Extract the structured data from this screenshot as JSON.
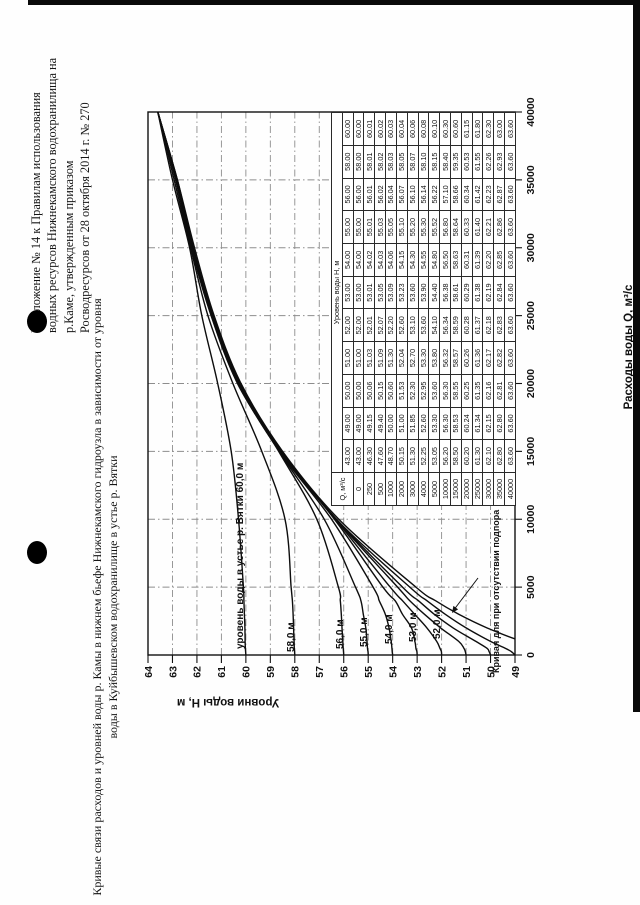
{
  "document": {
    "appendix_lines": [
      "Приложение № 14 к Правилам использования",
      "водных ресурсов Нижнекамского водохранилища на",
      "р.Каме, утвержденным приказом",
      "Росводресурсов от 28 октября 2014 г. № 270"
    ],
    "title_lines": [
      "Кривые связи расходов и уровней воды р. Камы в нижнем бьефе Нижнекамского гидроузла в зависимости от уровня",
      "воды в Куйбышевском водохранилище в устье р. Вятки"
    ]
  },
  "chart_data": {
    "type": "line",
    "title": "Кривые связи расходов и уровней воды р. Камы в нижнем бьефе Нижнекамского гидроузла",
    "xlabel": "Расходы воды Q, м³/с",
    "ylabel": "Уровни воды H, м",
    "xlim": [
      0,
      40000
    ],
    "ylim": [
      49,
      64
    ],
    "x_ticks": [
      0,
      5000,
      10000,
      15000,
      20000,
      25000,
      30000,
      35000,
      40000
    ],
    "y_ticks": [
      49,
      50,
      51,
      52,
      53,
      54,
      55,
      56,
      57,
      58,
      59,
      60,
      61,
      62,
      63,
      64
    ],
    "grid": "dash-dot",
    "legend_position": "none",
    "line_color": "#0d0d0d",
    "x": [
      0,
      250,
      500,
      1000,
      2000,
      3000,
      4000,
      5000,
      10000,
      15000,
      20000,
      25000,
      30000,
      35000,
      40000
    ],
    "series": [
      {
        "name": "43.00",
        "label": "Кривая для при отсутствии подпора",
        "values": [
          43.0,
          46.3,
          47.6,
          48.7,
          50.15,
          51.3,
          52.25,
          53.05,
          56.2,
          58.5,
          60.2,
          61.3,
          62.1,
          62.8,
          63.6
        ]
      },
      {
        "name": "49.00",
        "label": "",
        "values": [
          49.0,
          49.15,
          49.4,
          50.0,
          51.0,
          51.85,
          52.6,
          53.3,
          56.3,
          58.53,
          60.24,
          61.34,
          62.15,
          62.8,
          63.6
        ]
      },
      {
        "name": "50.00",
        "label": "",
        "values": [
          50.0,
          50.06,
          50.15,
          50.6,
          51.53,
          52.3,
          52.95,
          53.6,
          56.3,
          58.55,
          60.25,
          61.35,
          62.16,
          62.81,
          63.6
        ]
      },
      {
        "name": "51.00",
        "label": "",
        "values": [
          51.0,
          51.03,
          51.09,
          51.3,
          52.04,
          52.7,
          53.3,
          53.8,
          56.32,
          58.57,
          60.26,
          61.36,
          62.17,
          62.82,
          63.6
        ]
      },
      {
        "name": "52.00",
        "label": "52,0 м",
        "values": [
          52.0,
          52.01,
          52.07,
          52.2,
          52.6,
          53.1,
          53.6,
          54.1,
          56.34,
          58.59,
          60.28,
          61.37,
          62.18,
          62.83,
          63.6
        ]
      },
      {
        "name": "53.00",
        "label": "53,0 м",
        "values": [
          53.0,
          53.01,
          53.05,
          53.09,
          53.23,
          53.6,
          53.9,
          54.4,
          56.38,
          58.61,
          60.29,
          61.38,
          62.19,
          62.84,
          63.6
        ]
      },
      {
        "name": "54.00",
        "label": "54,0 м",
        "values": [
          54.0,
          54.02,
          54.03,
          54.06,
          54.15,
          54.3,
          54.55,
          54.8,
          56.5,
          58.63,
          60.31,
          61.39,
          62.2,
          62.85,
          63.6
        ]
      },
      {
        "name": "55.00",
        "label": "55,0 м",
        "values": [
          55.0,
          55.01,
          55.03,
          55.05,
          55.1,
          55.2,
          55.3,
          55.52,
          56.8,
          58.64,
          60.33,
          61.4,
          62.21,
          62.86,
          63.6
        ]
      },
      {
        "name": "56.00",
        "label": "56,0 м",
        "values": [
          56.0,
          56.01,
          56.02,
          56.04,
          56.07,
          56.1,
          56.14,
          56.22,
          57.1,
          58.66,
          60.34,
          61.42,
          62.23,
          62.87,
          63.6
        ]
      },
      {
        "name": "58.00",
        "label": "58,0 м",
        "values": [
          58.0,
          58.01,
          58.02,
          58.03,
          58.05,
          58.07,
          58.1,
          58.15,
          58.4,
          59.35,
          60.53,
          61.55,
          62.26,
          62.93,
          63.6
        ]
      },
      {
        "name": "60.00",
        "label": "уровень воды в устье р. Вятки 60,0 м",
        "values": [
          60.0,
          60.01,
          60.02,
          60.03,
          60.04,
          60.06,
          60.08,
          60.1,
          60.3,
          60.6,
          61.15,
          61.8,
          62.3,
          63.0,
          63.6
        ]
      }
    ]
  },
  "table": {
    "q_header": "Q, м³/с",
    "level_header": "Уровень воды H, м"
  }
}
